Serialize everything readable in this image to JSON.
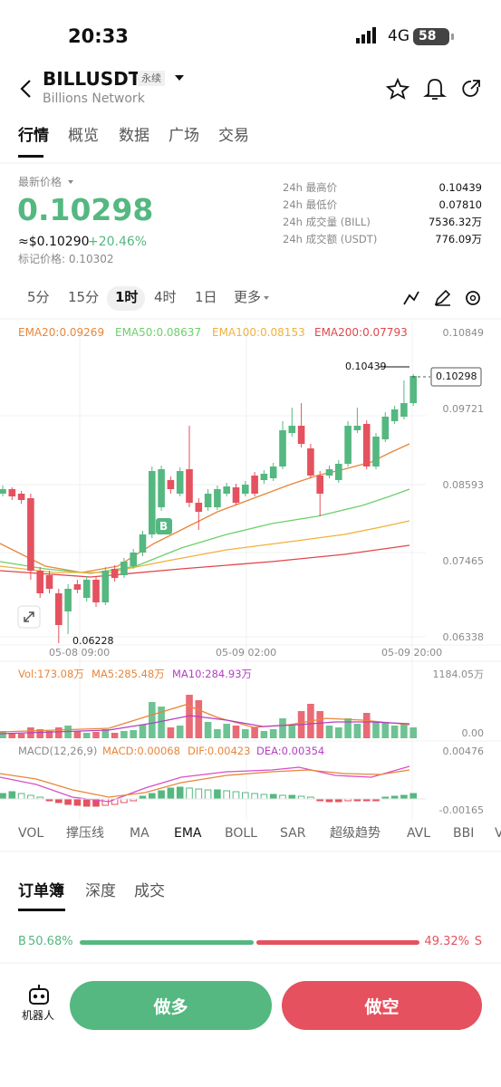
{
  "status_bar": {
    "time": "20:33",
    "network": "4G",
    "battery": "58"
  },
  "header": {
    "symbol": "BILLUSDT",
    "contract_type": "永续",
    "name": "Billions Network"
  },
  "tabs": [
    "行情",
    "概览",
    "数据",
    "广场",
    "交易"
  ],
  "price_panel": {
    "label": "最新价格",
    "last_price": "0.10298",
    "usd_price": "≈$0.10290",
    "change": "+20.46%",
    "mark_price": "标记价格: 0.10302",
    "stats": [
      [
        "24h 最高价",
        "0.10439"
      ],
      [
        "24h 最低价",
        "0.07810"
      ],
      [
        "24h 成交量 (BILL)",
        "7536.32万"
      ],
      [
        "24h 成交额 (USDT)",
        "776.09万"
      ]
    ]
  },
  "intervals": [
    "5分",
    "15分",
    "1时",
    "4时",
    "1日",
    "更多"
  ],
  "main_chart": {
    "ema_legend": [
      "EMA20:0.09269",
      "EMA50:0.08637",
      "EMA100:0.08153",
      "EMA200:0.07793"
    ],
    "price_axis": [
      "0.10849",
      "0.09721",
      "0.08593",
      "0.07465",
      "0.06338"
    ],
    "high_label": "0.10439",
    "current_label": "0.10298",
    "low_label": "0.06228",
    "signal": "B",
    "time_axis": [
      "05-08 09:00",
      "05-09 02:00",
      "05-09 20:00"
    ]
  },
  "volume_chart": {
    "legend": [
      "Vol:173.08万",
      "MA5:285.48万",
      "MA10:284.93万"
    ],
    "axis": [
      "1184.05万",
      "0.00"
    ]
  },
  "macd_chart": {
    "legend": [
      "MACD(12,26,9)",
      "MACD:0.00068",
      "DIF:0.00423",
      "DEA:0.00354"
    ],
    "axis": [
      "0.00476",
      "-0.00165"
    ]
  },
  "indicator_tabs": [
    "VOL",
    "撑压线",
    "MA",
    "EMA",
    "BOLL",
    "SAR",
    "超级趋势",
    "AVL",
    "BBI",
    "V"
  ],
  "order_tabs": [
    "订单簿",
    "深度",
    "成交"
  ],
  "ratio": {
    "buy_label": "B",
    "buy_percent": "50.68%",
    "sell_percent": "49.32%",
    "sell_label": "S"
  },
  "bottom_bar": {
    "robot": "机器人",
    "long": "做多",
    "short": "做空"
  }
}
